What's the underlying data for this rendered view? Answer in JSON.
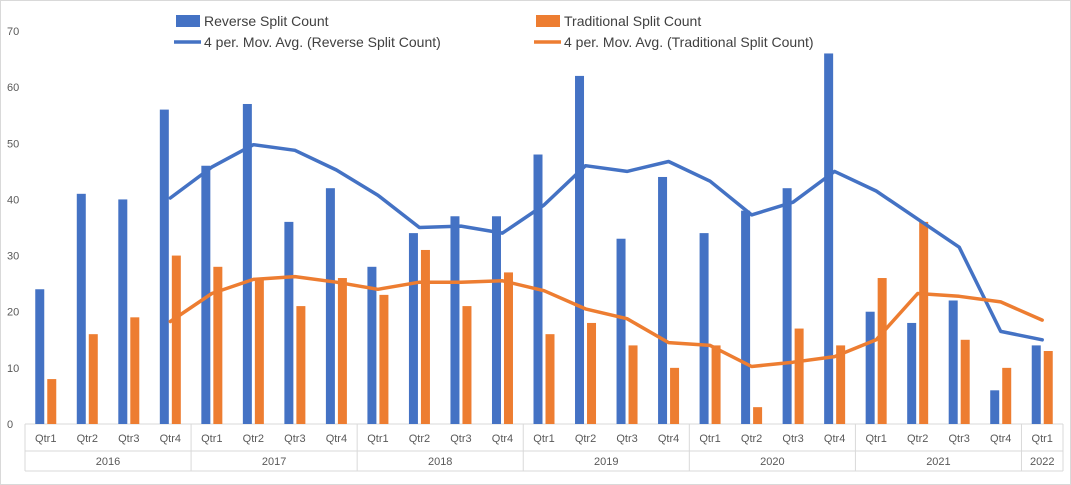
{
  "chart_data": {
    "type": "bar",
    "categories": [
      "Qtr1",
      "Qtr2",
      "Qtr3",
      "Qtr4",
      "Qtr1",
      "Qtr2",
      "Qtr3",
      "Qtr4",
      "Qtr1",
      "Qtr2",
      "Qtr3",
      "Qtr4",
      "Qtr1",
      "Qtr2",
      "Qtr3",
      "Qtr4",
      "Qtr1",
      "Qtr2",
      "Qtr3",
      "Qtr4",
      "Qtr1",
      "Qtr2",
      "Qtr3",
      "Qtr4",
      "Qtr1"
    ],
    "groups": [
      {
        "label": "2016",
        "count": 4
      },
      {
        "label": "2017",
        "count": 4
      },
      {
        "label": "2018",
        "count": 4
      },
      {
        "label": "2019",
        "count": 4
      },
      {
        "label": "2020",
        "count": 4
      },
      {
        "label": "2021",
        "count": 4
      },
      {
        "label": "2022",
        "count": 1
      }
    ],
    "series": [
      {
        "name": "Reverse Split Count",
        "color": "#4472C4",
        "values": [
          24,
          41,
          40,
          56,
          46,
          57,
          36,
          42,
          28,
          34,
          37,
          37,
          48,
          62,
          33,
          44,
          34,
          38,
          42,
          66,
          20,
          18,
          22,
          6,
          14
        ]
      },
      {
        "name": "Traditional Split Count",
        "color": "#ED7D31",
        "values": [
          8,
          16,
          19,
          30,
          28,
          26,
          21,
          26,
          23,
          31,
          21,
          27,
          16,
          18,
          14,
          10,
          14,
          3,
          17,
          14,
          26,
          36,
          15,
          10,
          13
        ]
      }
    ],
    "trendlines": [
      {
        "name": "4 per. Mov. Avg. (Reverse Split Count)",
        "series_index": 0,
        "period": 4,
        "color": "#4472C4"
      },
      {
        "name": "4 per. Mov. Avg. (Traditional Split Count)",
        "series_index": 1,
        "period": 4,
        "color": "#ED7D31"
      }
    ],
    "y_ticks": [
      "0",
      "10",
      "20",
      "30",
      "40",
      "50",
      "60",
      "70"
    ],
    "ylim": [
      0,
      70
    ],
    "legend_position": "top"
  }
}
